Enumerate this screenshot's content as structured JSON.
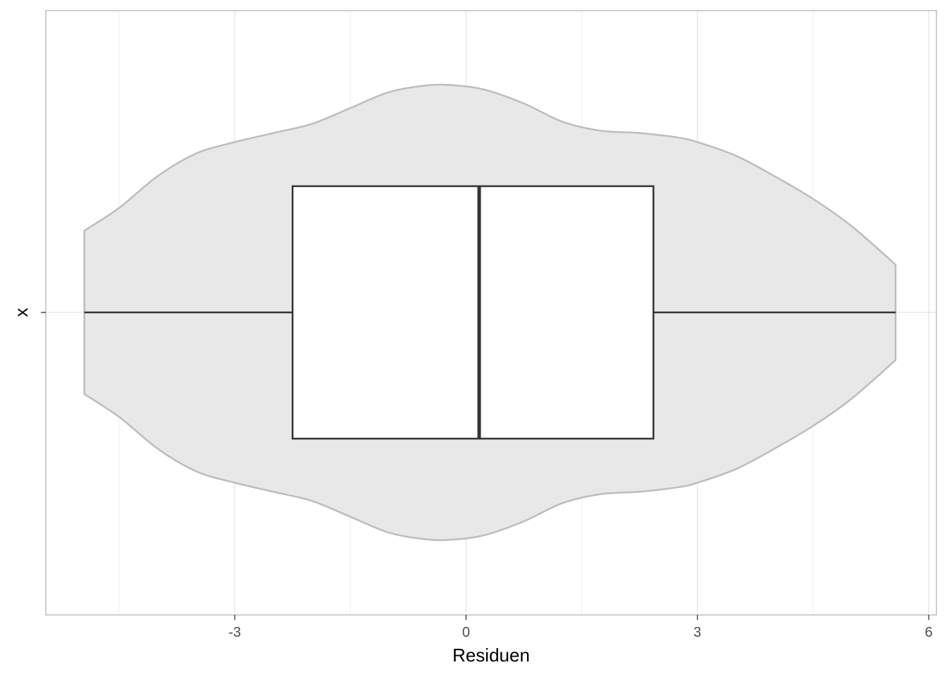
{
  "chart_data": {
    "type": "violin-boxplot",
    "title": "",
    "xlabel": "Residuen",
    "ylabel": "",
    "category": "x",
    "xlim": [
      -5.45,
      6.1
    ],
    "x_ticks": [
      -3,
      0,
      3,
      6
    ],
    "x_minor_ticks": [
      -4.5,
      -1.5,
      1.5,
      4.5
    ],
    "grid": true,
    "orientation": "horizontal",
    "boxplot": {
      "whisker_low": -4.95,
      "q1": -2.25,
      "median": 0.17,
      "q3": 2.43,
      "whisker_high": 5.57
    },
    "violin": {
      "x": [
        -4.95,
        -4.5,
        -4.0,
        -3.5,
        -3.0,
        -2.5,
        -2.0,
        -1.5,
        -1.0,
        -0.5,
        -0.15,
        0.25,
        0.75,
        1.25,
        1.75,
        2.25,
        2.75,
        3.0,
        3.5,
        4.0,
        4.5,
        5.0,
        5.57
      ],
      "density": [
        0.36,
        0.46,
        0.6,
        0.7,
        0.75,
        0.79,
        0.83,
        0.9,
        0.97,
        1.0,
        1.0,
        0.98,
        0.92,
        0.84,
        0.8,
        0.79,
        0.77,
        0.75,
        0.69,
        0.6,
        0.5,
        0.38,
        0.21
      ]
    },
    "colors": {
      "violin_fill": "#e8e8e8",
      "violin_stroke": "#bdbdbd",
      "box_fill": "#ffffff",
      "box_stroke": "#333333",
      "grid": "#e3e3e3",
      "panel_border": "#b3b3b3"
    }
  },
  "labels": {
    "y_tick": "x",
    "x_title": "Residuen"
  }
}
